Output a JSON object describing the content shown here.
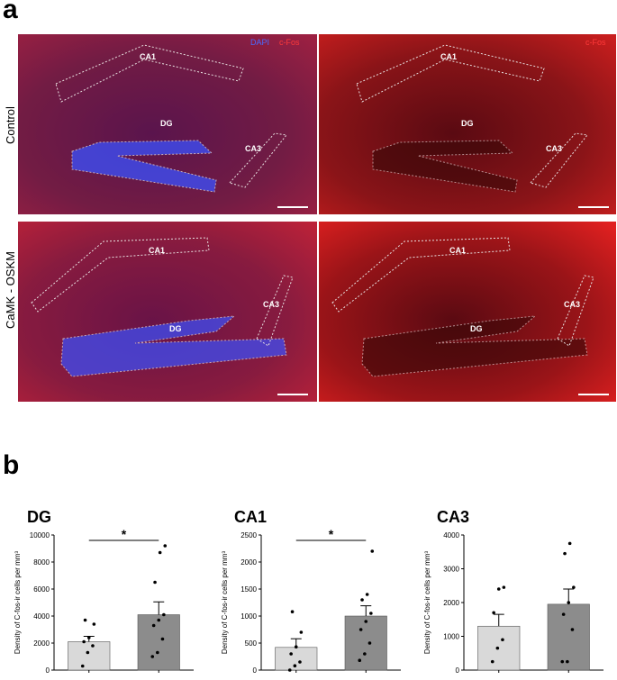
{
  "panel_a": {
    "letter": "a",
    "row_labels": [
      "Control",
      "CaMK - OSKM"
    ],
    "channel_labels": {
      "dapi": "DAPI",
      "cfos": "c-Fos"
    },
    "region_labels": {
      "ca1": "CA1",
      "dg": "DG",
      "ca3": "CA3"
    },
    "colors": {
      "dapi": "#3a5bff",
      "cfos": "#ff2a2a"
    }
  },
  "panel_b": {
    "letter": "b"
  },
  "chart_data": [
    {
      "type": "bar",
      "title": "DG",
      "ylabel": "Density of C-fos-ir cells per mm³",
      "categories": [
        "Control",
        "CaMK-OSKM"
      ],
      "values": [
        2100,
        4100
      ],
      "errors": [
        400,
        950
      ],
      "points": [
        [
          300,
          1300,
          1800,
          2100,
          2400,
          3400,
          3700
        ],
        [
          1000,
          1300,
          2300,
          3300,
          3700,
          4100,
          6500,
          8700,
          9200
        ]
      ],
      "ylim": [
        0,
        10000
      ],
      "yticks": [
        0,
        2000,
        4000,
        6000,
        8000,
        10000
      ],
      "significance": "*",
      "bar_colors": [
        "#d9d9d9",
        "#8c8c8c"
      ]
    },
    {
      "type": "bar",
      "title": "CA1",
      "ylabel": "Density of C-fos-ir cells per mm³",
      "categories": [
        "Control",
        "CaMK-OSKM"
      ],
      "values": [
        420,
        1000
      ],
      "errors": [
        160,
        190
      ],
      "points": [
        [
          0,
          80,
          150,
          300,
          430,
          700,
          1080
        ],
        [
          180,
          300,
          500,
          750,
          900,
          1050,
          1300,
          1400,
          2200
        ]
      ],
      "ylim": [
        0,
        2500
      ],
      "yticks": [
        0,
        500,
        1000,
        1500,
        2000,
        2500
      ],
      "significance": "*",
      "bar_colors": [
        "#d9d9d9",
        "#8c8c8c"
      ]
    },
    {
      "type": "bar",
      "title": "CA3",
      "ylabel": "Density of C-fos-ir cells per mm³",
      "categories": [
        "Control",
        "CaMK-OSKM"
      ],
      "values": [
        1300,
        1950
      ],
      "errors": [
        350,
        450
      ],
      "points": [
        [
          250,
          650,
          900,
          1700,
          2400,
          2450
        ],
        [
          250,
          250,
          1200,
          1650,
          2000,
          2450,
          3450,
          3750
        ]
      ],
      "ylim": [
        0,
        4000
      ],
      "yticks": [
        0,
        1000,
        2000,
        3000,
        4000
      ],
      "significance": "",
      "bar_colors": [
        "#d9d9d9",
        "#8c8c8c"
      ]
    }
  ]
}
